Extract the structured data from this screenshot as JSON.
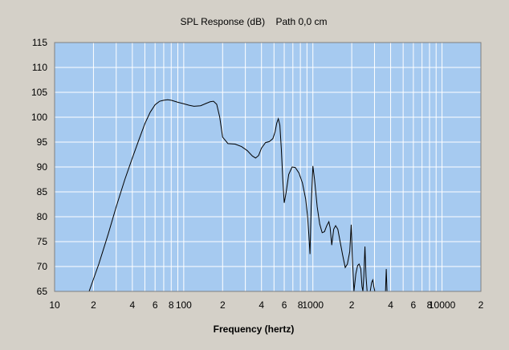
{
  "chart_data": {
    "type": "line",
    "title": "SPL Response (dB)    Path 0,0 cm",
    "xlabel": "Frequency (hertz)",
    "ylabel": "",
    "x_scale": "log",
    "xlim": [
      10,
      20000
    ],
    "ylim": [
      65,
      115
    ],
    "grid": true,
    "y_ticks": [
      65,
      70,
      75,
      80,
      85,
      90,
      95,
      100,
      105,
      110,
      115
    ],
    "x_tick_labels": [
      {
        "x": 10,
        "label": "10"
      },
      {
        "x": 20,
        "label": "2"
      },
      {
        "x": 40,
        "label": "4"
      },
      {
        "x": 60,
        "label": "6"
      },
      {
        "x": 80,
        "label": "8"
      },
      {
        "x": 100,
        "label": "100"
      },
      {
        "x": 200,
        "label": "2"
      },
      {
        "x": 400,
        "label": "4"
      },
      {
        "x": 600,
        "label": "6"
      },
      {
        "x": 800,
        "label": "8"
      },
      {
        "x": 1000,
        "label": "1000"
      },
      {
        "x": 2000,
        "label": "2"
      },
      {
        "x": 4000,
        "label": "4"
      },
      {
        "x": 6000,
        "label": "6"
      },
      {
        "x": 8000,
        "label": "8"
      },
      {
        "x": 10000,
        "label": "10000"
      },
      {
        "x": 20000,
        "label": "2"
      }
    ],
    "series": [
      {
        "x": [
          18.5,
          22,
          26,
          30,
          35,
          40,
          45,
          50,
          55,
          60,
          65,
          70,
          75,
          80,
          90,
          100,
          110,
          120,
          135,
          150,
          160,
          170,
          180,
          190,
          200,
          220,
          250,
          280,
          310,
          340,
          360,
          380,
          400,
          430,
          460,
          490,
          510,
          525,
          540,
          555,
          570,
          585,
          600,
          620,
          650,
          690,
          730,
          780,
          830,
          880,
          910,
          930,
          950,
          970,
          1000,
          1030,
          1080,
          1130,
          1180,
          1230,
          1280,
          1330,
          1360,
          1400,
          1450,
          1500,
          1560,
          1620,
          1700,
          1780,
          1850,
          1930,
          1980,
          2020,
          2080,
          2150,
          2220,
          2280,
          2350,
          2400,
          2440,
          2480,
          2530,
          2580,
          2630,
          2700,
          2780,
          2850,
          2910,
          2960,
          3020,
          3100,
          3200,
          3320,
          3500,
          3650,
          3700,
          3750,
          3800
        ],
        "y": [
          65,
          70.5,
          76.5,
          82,
          87.5,
          91.8,
          95.5,
          98.7,
          101,
          102.5,
          103.2,
          103.4,
          103.5,
          103.4,
          103,
          102.7,
          102.4,
          102.2,
          102.3,
          102.8,
          103.1,
          103.2,
          102.6,
          100,
          96,
          94.7,
          94.6,
          94.1,
          93.3,
          92.2,
          91.8,
          92.3,
          93.8,
          94.9,
          95.1,
          95.7,
          97.1,
          98.8,
          99.7,
          98.4,
          93.5,
          87.5,
          82.8,
          84.8,
          88.5,
          90,
          89.9,
          88.8,
          86.8,
          83.5,
          80,
          76.5,
          72.5,
          82,
          90.2,
          87.5,
          82,
          78.5,
          76.8,
          77,
          78.2,
          79,
          77.8,
          74.3,
          77.5,
          78.2,
          77.5,
          75.2,
          72.3,
          69.8,
          70.5,
          73,
          78.4,
          72,
          65,
          68.5,
          70.2,
          70.5,
          69.5,
          66,
          65,
          68,
          74,
          68,
          65,
          65,
          65,
          66.8,
          67.3,
          66,
          65,
          65,
          65,
          65,
          65,
          65,
          69.5,
          65,
          65
        ]
      }
    ]
  }
}
